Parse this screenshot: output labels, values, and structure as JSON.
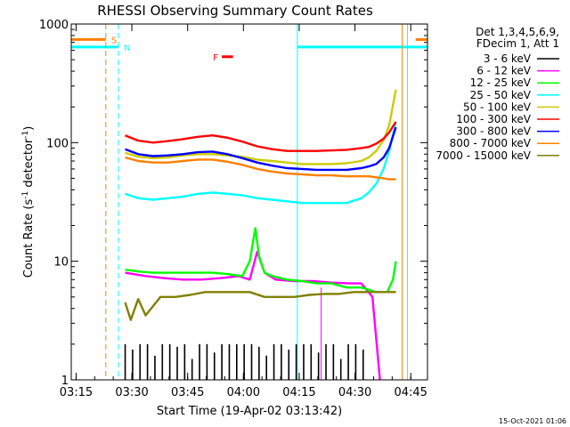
{
  "chart_data": {
    "type": "line",
    "title": "RHESSI Observing Summary Count Rates",
    "xlabel": "Start Time (19-Apr-02 03:13:42)",
    "ylabel_main": "Count Rate (s",
    "ylabel_exp1": "-1",
    "ylabel_mid": " detector",
    "ylabel_exp2": "-1",
    "ylabel_end": ")",
    "xlim": [
      0,
      95.8
    ],
    "ylim": [
      1,
      1000
    ],
    "yscale": "log",
    "x_ticks": [
      {
        "min": 1.3,
        "label": "03:15"
      },
      {
        "min": 16.3,
        "label": "03:30"
      },
      {
        "min": 31.3,
        "label": "03:45"
      },
      {
        "min": 46.3,
        "label": "04:00"
      },
      {
        "min": 61.3,
        "label": "04:15"
      },
      {
        "min": 76.3,
        "label": "04:30"
      },
      {
        "min": 91.3,
        "label": "04:45"
      }
    ],
    "y_ticks": [
      {
        "value": 1,
        "label": "1"
      },
      {
        "value": 10,
        "label": "10"
      },
      {
        "value": 100,
        "label": "100"
      },
      {
        "value": 1000,
        "label": "1000"
      }
    ],
    "legend_header": [
      "Det 1,3,4,5,6,9,",
      "FDecim 1, Att 1"
    ],
    "series": [
      {
        "name": "3 - 6 keV",
        "color": "#000000",
        "style": "spikes",
        "x": [
          14.5,
          16.5,
          18.5,
          20.5,
          22.5,
          24.5,
          26.5,
          28.5,
          30.5,
          32.5,
          34.5,
          36.5,
          38.5,
          40.5,
          42.5,
          44.5,
          46.5,
          48.5,
          50.5,
          52.5,
          54.5,
          56.5,
          58.5,
          60.5,
          62.5,
          64.5,
          66.5,
          68.5,
          70.5,
          72.5,
          74.5,
          76.5,
          78.5
        ],
        "y": [
          2,
          1.8,
          2,
          2,
          1.6,
          2,
          2,
          1.9,
          2,
          1.5,
          2,
          2,
          1.7,
          2,
          2,
          2,
          2,
          2,
          1.9,
          1.6,
          2,
          2,
          1.8,
          2,
          2,
          2,
          1.7,
          2,
          2,
          1.5,
          2,
          2,
          1.8
        ]
      },
      {
        "name": "6 - 12 keV",
        "color": "#ff00ff",
        "style": "line",
        "x": [
          14.5,
          20,
          25,
          30,
          35,
          40,
          45,
          48,
          50,
          52,
          55,
          60,
          65,
          70,
          75,
          78,
          81,
          83
        ],
        "y": [
          8,
          7.5,
          7.2,
          7,
          7,
          7.2,
          7.5,
          7,
          12,
          8,
          7,
          6.8,
          6.8,
          6.6,
          6.5,
          6.5,
          5,
          1
        ]
      },
      {
        "name": "12 - 25 keV",
        "color": "#00ff00",
        "style": "line",
        "x": [
          14.5,
          18,
          22,
          26,
          30,
          34,
          38,
          42,
          46,
          48,
          49.5,
          50.5,
          52,
          54,
          58,
          62,
          66,
          70,
          74,
          78,
          82,
          85,
          86.5,
          87.3
        ],
        "y": [
          8.5,
          8.2,
          8,
          8,
          8,
          8,
          8,
          7.8,
          7.5,
          10,
          19,
          11,
          8,
          7.5,
          7,
          6.8,
          6.5,
          6.5,
          6,
          6,
          5.5,
          5.5,
          7,
          10
        ]
      },
      {
        "name": "25 - 50 keV",
        "color": "#00ffff",
        "style": "line",
        "x": [
          14.5,
          18,
          22,
          26,
          30,
          34,
          38,
          42,
          46,
          50,
          54,
          58,
          62,
          66,
          70,
          74,
          78,
          80,
          82,
          84,
          85.5,
          87.3
        ],
        "y": [
          37,
          34,
          33,
          34,
          35,
          37,
          38,
          37,
          36,
          34,
          33,
          32,
          31,
          31,
          31,
          31,
          34,
          38,
          45,
          60,
          85,
          150
        ]
      },
      {
        "name": "50 - 100 keV",
        "color": "#cccc00",
        "style": "line",
        "x": [
          14.5,
          18,
          22,
          26,
          30,
          34,
          38,
          42,
          46,
          50,
          54,
          58,
          62,
          66,
          70,
          74,
          78,
          80,
          82,
          84,
          85.5,
          87.3
        ],
        "y": [
          82,
          76,
          74,
          75,
          78,
          80,
          80,
          78,
          76,
          72,
          70,
          68,
          66,
          66,
          66,
          67,
          70,
          75,
          85,
          105,
          140,
          280
        ]
      },
      {
        "name": "100 - 300 keV",
        "color": "#ff0000",
        "style": "line",
        "x": [
          14.5,
          18,
          22,
          26,
          30,
          34,
          38,
          42,
          46,
          50,
          54,
          58,
          62,
          66,
          70,
          74,
          78,
          80,
          82,
          84,
          85.5,
          87.3
        ],
        "y": [
          115,
          104,
          100,
          103,
          107,
          112,
          115,
          110,
          102,
          93,
          88,
          85,
          85,
          85,
          86,
          87,
          90,
          92,
          98,
          108,
          122,
          150
        ]
      },
      {
        "name": "300 - 800 keV",
        "color": "#0000ff",
        "style": "line",
        "x": [
          14.5,
          18,
          22,
          26,
          30,
          34,
          38,
          42,
          46,
          50,
          54,
          58,
          62,
          66,
          70,
          74,
          78,
          80,
          82,
          84,
          85.5,
          87.3
        ],
        "y": [
          88,
          80,
          77,
          78,
          80,
          83,
          84,
          80,
          74,
          68,
          64,
          61,
          60,
          59,
          59,
          59,
          61,
          63,
          66,
          75,
          90,
          135
        ]
      },
      {
        "name": "800 - 7000 keV",
        "color": "#ff8000",
        "style": "line",
        "x": [
          14.5,
          18,
          22,
          26,
          30,
          34,
          38,
          42,
          46,
          50,
          54,
          58,
          62,
          66,
          70,
          74,
          78,
          80,
          82,
          84,
          85.5,
          87.3
        ],
        "y": [
          75,
          70,
          68,
          68,
          70,
          72,
          72,
          69,
          65,
          60,
          57,
          55,
          54,
          53,
          53,
          52,
          52,
          52,
          51,
          50,
          49,
          49
        ]
      },
      {
        "name": "7000 - 15000 keV",
        "color": "#808000",
        "style": "line",
        "x": [
          14.5,
          16,
          18,
          20,
          24,
          28,
          32,
          36,
          40,
          44,
          48,
          52,
          56,
          60,
          64,
          68,
          72,
          76,
          80,
          84,
          87.3
        ],
        "y": [
          4.5,
          3.2,
          4.8,
          3.5,
          5,
          5,
          5.2,
          5.5,
          5.5,
          5.5,
          5.5,
          5,
          5,
          5,
          5.2,
          5.3,
          5.3,
          5.5,
          5.5,
          5.5,
          5.5
        ]
      }
    ],
    "state_bars": [
      {
        "label": "S",
        "color": "#ff8000",
        "y": 740,
        "x0": 0,
        "x1": 9.3,
        "x2": 92.6,
        "x3": 95.8
      },
      {
        "label": "N",
        "color": "#00ffff",
        "y": 640,
        "x0": 0,
        "x1": 12.7,
        "x2": 60.8,
        "x3": 95.8
      },
      {
        "label": "F",
        "color": "#ff0000",
        "y": 530,
        "x0": 40.5,
        "x1": 43.5
      }
    ],
    "vlines": [
      {
        "min": 9.3,
        "color": "#ff8000",
        "dash": true
      },
      {
        "min": 12.7,
        "color": "#00ffff",
        "dash": true
      },
      {
        "min": 60.8,
        "color": "#00ffff",
        "dash": false
      },
      {
        "min": 67.2,
        "color": "#ff00ff",
        "dash": false
      },
      {
        "min": 89.0,
        "color": "#ff8000",
        "dash": false
      },
      {
        "min": 90.4,
        "color": "#00ffff",
        "dash": false
      }
    ],
    "timestamp": "15-Oct-2021 01:06"
  }
}
